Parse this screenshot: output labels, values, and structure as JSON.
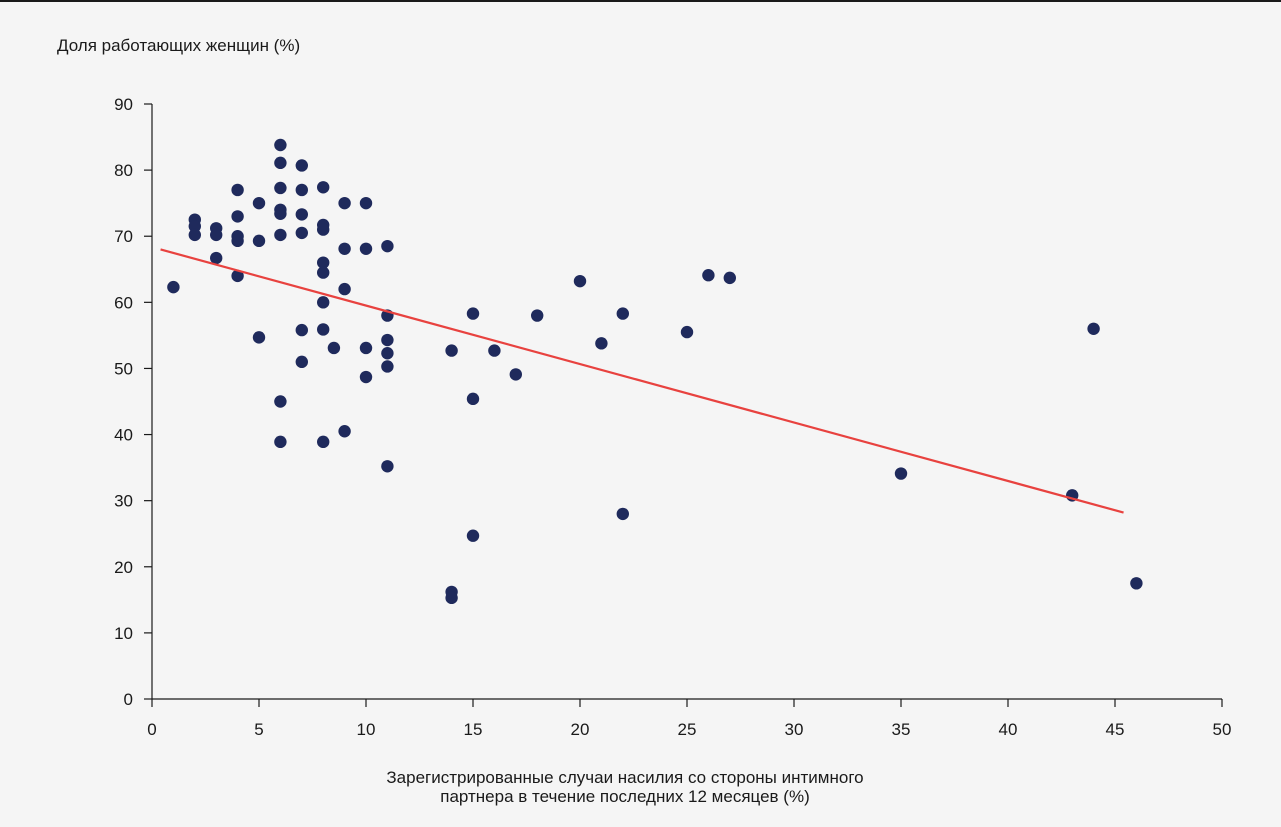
{
  "chart_data": {
    "type": "scatter",
    "ylabel": "Доля работающих женщин (%)",
    "xlabel_lines": [
      "Зарегистрированные случаи насилия со стороны интимного",
      "партнера в течение последних 12 месяцев (%)"
    ],
    "xlim": [
      0,
      50
    ],
    "ylim": [
      0,
      90
    ],
    "x_ticks": [
      0,
      5,
      10,
      15,
      20,
      25,
      30,
      35,
      40,
      45,
      50
    ],
    "y_ticks": [
      0,
      10,
      20,
      30,
      40,
      50,
      60,
      70,
      80,
      90
    ],
    "grid": false,
    "legend": "none",
    "colors": {
      "points": "#1f2a5c",
      "trend": "#e8423f",
      "axis": "#1a1a1a",
      "background": "#f5f5f5"
    },
    "points": [
      {
        "x": 1,
        "y": 62.3
      },
      {
        "x": 2,
        "y": 72.5
      },
      {
        "x": 2,
        "y": 71.5
      },
      {
        "x": 2,
        "y": 70.2
      },
      {
        "x": 3,
        "y": 71.2
      },
      {
        "x": 3,
        "y": 70.2
      },
      {
        "x": 3,
        "y": 66.7
      },
      {
        "x": 4,
        "y": 77
      },
      {
        "x": 4,
        "y": 73
      },
      {
        "x": 4,
        "y": 70
      },
      {
        "x": 4,
        "y": 69.3
      },
      {
        "x": 4,
        "y": 64
      },
      {
        "x": 5,
        "y": 75
      },
      {
        "x": 5,
        "y": 69.3
      },
      {
        "x": 5,
        "y": 54.7
      },
      {
        "x": 6,
        "y": 83.8
      },
      {
        "x": 6,
        "y": 81.1
      },
      {
        "x": 6,
        "y": 77.3
      },
      {
        "x": 6,
        "y": 74
      },
      {
        "x": 6,
        "y": 73.4
      },
      {
        "x": 6,
        "y": 70.2
      },
      {
        "x": 6,
        "y": 45
      },
      {
        "x": 6,
        "y": 38.9
      },
      {
        "x": 7,
        "y": 80.7
      },
      {
        "x": 7,
        "y": 77
      },
      {
        "x": 7,
        "y": 73.3
      },
      {
        "x": 7,
        "y": 70.5
      },
      {
        "x": 7,
        "y": 55.8
      },
      {
        "x": 7,
        "y": 51
      },
      {
        "x": 8,
        "y": 77.4
      },
      {
        "x": 8,
        "y": 71.7
      },
      {
        "x": 8,
        "y": 71
      },
      {
        "x": 8,
        "y": 66
      },
      {
        "x": 8,
        "y": 64.5
      },
      {
        "x": 8,
        "y": 60
      },
      {
        "x": 8,
        "y": 55.9
      },
      {
        "x": 8,
        "y": 38.9
      },
      {
        "x": 8.5,
        "y": 53.1
      },
      {
        "x": 9,
        "y": 75
      },
      {
        "x": 9,
        "y": 68.1
      },
      {
        "x": 9,
        "y": 62
      },
      {
        "x": 9,
        "y": 40.5
      },
      {
        "x": 10,
        "y": 75
      },
      {
        "x": 10,
        "y": 68.1
      },
      {
        "x": 10,
        "y": 53.1
      },
      {
        "x": 10,
        "y": 48.7
      },
      {
        "x": 11,
        "y": 68.5
      },
      {
        "x": 11,
        "y": 58
      },
      {
        "x": 11,
        "y": 54.3
      },
      {
        "x": 11,
        "y": 52.3
      },
      {
        "x": 11,
        "y": 50.3
      },
      {
        "x": 11,
        "y": 35.2
      },
      {
        "x": 14,
        "y": 52.7
      },
      {
        "x": 14,
        "y": 16.2
      },
      {
        "x": 14,
        "y": 15.3
      },
      {
        "x": 15,
        "y": 58.3
      },
      {
        "x": 15,
        "y": 45.4
      },
      {
        "x": 15,
        "y": 24.7
      },
      {
        "x": 16,
        "y": 52.7
      },
      {
        "x": 17,
        "y": 49.1
      },
      {
        "x": 18,
        "y": 58
      },
      {
        "x": 20,
        "y": 63.2
      },
      {
        "x": 21,
        "y": 53.8
      },
      {
        "x": 22,
        "y": 58.3
      },
      {
        "x": 22,
        "y": 28
      },
      {
        "x": 25,
        "y": 55.5
      },
      {
        "x": 26,
        "y": 64.1
      },
      {
        "x": 27,
        "y": 63.7
      },
      {
        "x": 35,
        "y": 34.1
      },
      {
        "x": 43,
        "y": 30.8
      },
      {
        "x": 44,
        "y": 56
      },
      {
        "x": 46,
        "y": 17.5
      }
    ],
    "trend_line": {
      "x": [
        0.4,
        45.4
      ],
      "y": [
        68,
        28.2
      ]
    }
  }
}
